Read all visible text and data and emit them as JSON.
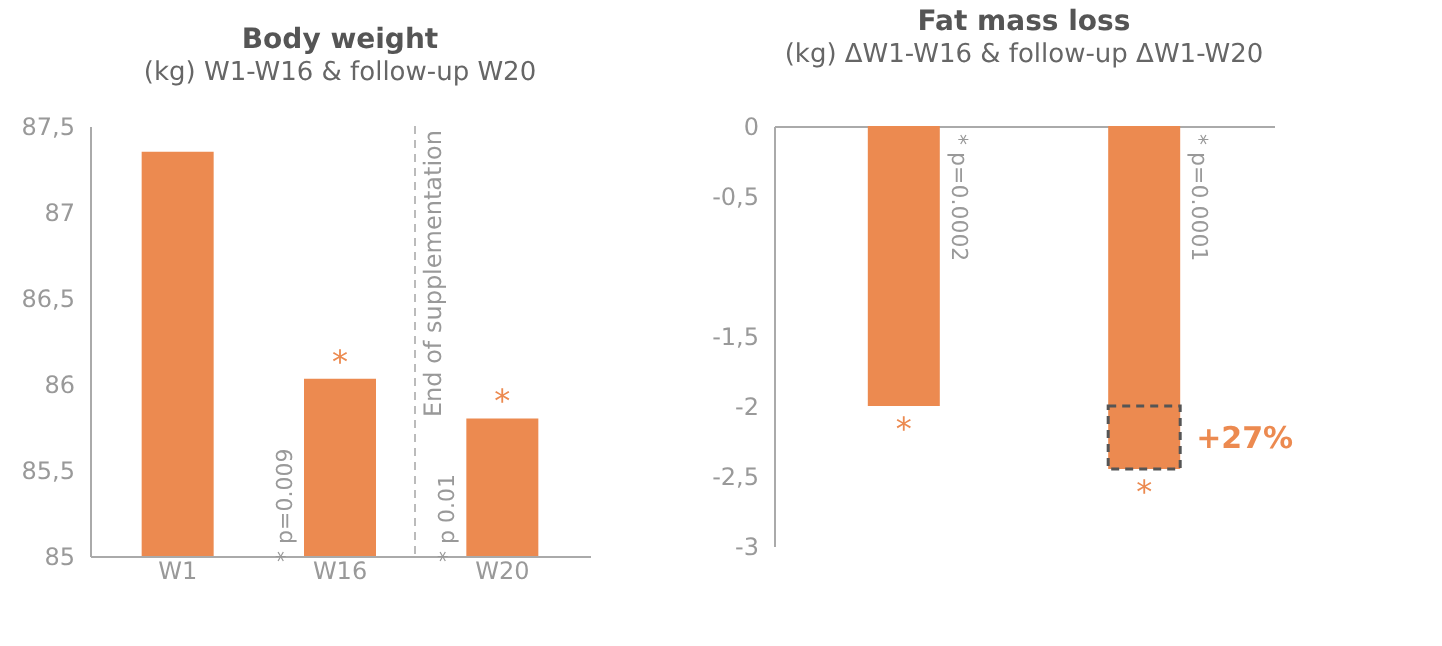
{
  "chart_data": [
    {
      "type": "bar",
      "title": "Body weight",
      "subtitle": "(kg) W1-W16 & follow-up W20",
      "categories": [
        "W1",
        "W16",
        "W20"
      ],
      "series": [
        {
          "color": "#ec8a50",
          "values": [
            87.35,
            86.03,
            85.8
          ]
        }
      ],
      "ylim": [
        85,
        87.5
      ],
      "yticks": [
        {
          "value": 85,
          "label": "85"
        },
        {
          "value": 85.5,
          "label": "85,5"
        },
        {
          "value": 86,
          "label": "86"
        },
        {
          "value": 86.5,
          "label": "86,5"
        },
        {
          "value": 87,
          "label": "87"
        },
        {
          "value": 87.5,
          "label": "87,5"
        }
      ],
      "grid": false,
      "annotations": [
        "*",
        "*",
        "* p=0.009",
        "* p 0.01",
        "End of supplementation"
      ]
    },
    {
      "type": "bar",
      "title": "Fat mass loss",
      "subtitle": "(kg) ΔW1-W16 & follow-up ΔW1-W20",
      "categories": [
        null,
        null
      ],
      "stacked": true,
      "series": [
        {
          "color": "#ec8a50",
          "values": [
            -2.0,
            -2.0
          ]
        },
        {
          "color": "#ec8a50",
          "values": [
            null,
            -0.45
          ],
          "line_style": "dashed"
        }
      ],
      "ylim": [
        -3,
        0
      ],
      "yticks": [
        {
          "value": 0,
          "label": "0"
        },
        {
          "value": -0.5,
          "label": "-0,5"
        },
        {
          "value": -1.5,
          "label": "-1,5"
        },
        {
          "value": -2,
          "label": "-2"
        },
        {
          "value": -2.5,
          "label": "-2,5"
        },
        {
          "value": -3,
          "label": "-3"
        }
      ],
      "grid": false,
      "annotations": [
        "* p=0.0002",
        "* p=0.0001",
        "*",
        "*",
        "+27%"
      ]
    }
  ]
}
